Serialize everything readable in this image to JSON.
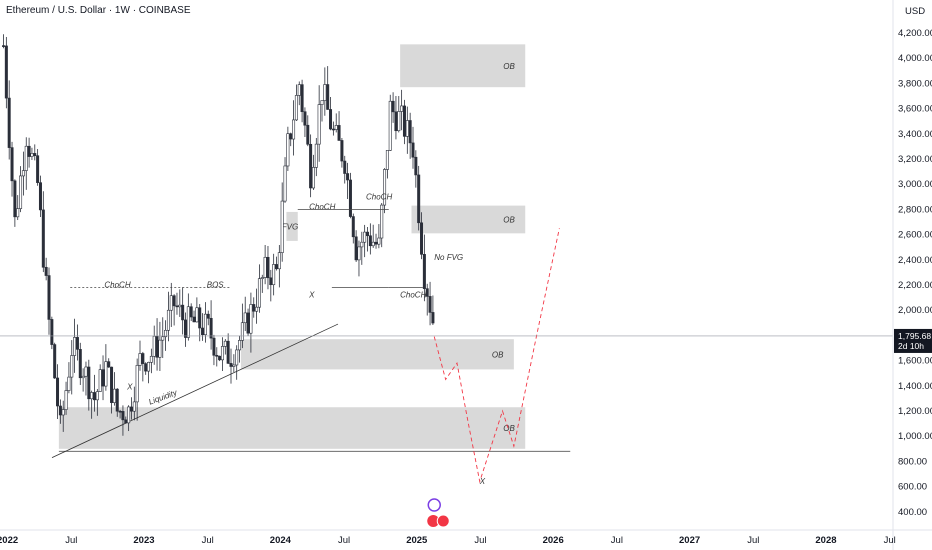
{
  "header": {
    "symbol_line": "Ethereum / U.S. Dollar · 1W · COINBASE",
    "currency": "USD"
  },
  "colors": {
    "up": "#089981",
    "down": "#f23645",
    "candle": "#2a2e39",
    "zone": "#d9d9d9",
    "projection": "#f23645",
    "price_line": "#9598a1"
  },
  "chart_data": {
    "type": "candlestick",
    "x_axis_labels": [
      "2022",
      "Jul",
      "2023",
      "Jul",
      "2024",
      "Jul",
      "2025",
      "Jul",
      "2026",
      "Jul",
      "2027",
      "Jul",
      "2028",
      "Jul"
    ],
    "y_axis_labels": [
      "4,200.00",
      "4,000.00",
      "3,800.00",
      "3,600.00",
      "3,400.00",
      "3,200.00",
      "3,000.00",
      "2,800.00",
      "2,600.00",
      "2,400.00",
      "2,200.00",
      "2,000.00",
      "1,800.00",
      "1,600.00",
      "1,400.00",
      "1,200.00",
      "1,000.00",
      "800.00",
      "600.00",
      "400.00"
    ],
    "last_price": "1,795.68",
    "countdown": "2d 10h",
    "price_path": [
      {
        "date": "2022-01",
        "price": 4100
      },
      {
        "date": "2022-02",
        "price": 2700
      },
      {
        "date": "2022-03",
        "price": 3400
      },
      {
        "date": "2022-04",
        "price": 3000
      },
      {
        "date": "2022-05",
        "price": 1900
      },
      {
        "date": "2022-06",
        "price": 1050
      },
      {
        "date": "2022-07",
        "price": 1700
      },
      {
        "date": "2022-08",
        "price": 1550
      },
      {
        "date": "2022-09",
        "price": 1300
      },
      {
        "date": "2022-10",
        "price": 1550
      },
      {
        "date": "2022-11",
        "price": 1200
      },
      {
        "date": "2022-12",
        "price": 1200
      },
      {
        "date": "2023-01",
        "price": 1600
      },
      {
        "date": "2023-02",
        "price": 1650
      },
      {
        "date": "2023-03",
        "price": 1800
      },
      {
        "date": "2023-04",
        "price": 2050
      },
      {
        "date": "2023-05",
        "price": 1900
      },
      {
        "date": "2023-06",
        "price": 1900
      },
      {
        "date": "2023-07",
        "price": 1850
      },
      {
        "date": "2023-08",
        "price": 1650
      },
      {
        "date": "2023-09",
        "price": 1650
      },
      {
        "date": "2023-10",
        "price": 1800
      },
      {
        "date": "2023-11",
        "price": 2050
      },
      {
        "date": "2023-12",
        "price": 2300
      },
      {
        "date": "2024-01",
        "price": 2300
      },
      {
        "date": "2024-02",
        "price": 3300
      },
      {
        "date": "2024-03",
        "price": 3800
      },
      {
        "date": "2024-04",
        "price": 3100
      },
      {
        "date": "2024-05",
        "price": 3750
      },
      {
        "date": "2024-06",
        "price": 3400
      },
      {
        "date": "2024-07",
        "price": 3200
      },
      {
        "date": "2024-08",
        "price": 2500
      },
      {
        "date": "2024-09",
        "price": 2600
      },
      {
        "date": "2024-10",
        "price": 2500
      },
      {
        "date": "2024-11",
        "price": 3600
      },
      {
        "date": "2024-12",
        "price": 3500
      },
      {
        "date": "2025-01",
        "price": 3300
      },
      {
        "date": "2025-02",
        "price": 2300
      },
      {
        "date": "2025-03",
        "price": 1800
      }
    ],
    "zones": [
      {
        "label": "OB",
        "date_from": "2024-12",
        "date_to": "2025-11",
        "price_low": 3770,
        "price_high": 4110
      },
      {
        "label": "OB",
        "date_from": "2025-01",
        "date_to": "2025-11",
        "price_low": 2610,
        "price_high": 2830
      },
      {
        "label": "FVG",
        "date_from": "2024-02",
        "date_to": "2024-03",
        "price_low": 2550,
        "price_high": 2780
      },
      {
        "label": "OB",
        "date_from": "2023-10",
        "date_to": "2025-10",
        "price_low": 1530,
        "price_high": 1770
      },
      {
        "label": "OB",
        "date_from": "2022-06",
        "date_to": "2025-11",
        "price_low": 900,
        "price_high": 1230
      }
    ],
    "annotations": [
      {
        "text": "ChoCH",
        "date": "2022-10",
        "price": 2180
      },
      {
        "text": "BOS",
        "date": "2023-07",
        "price": 2180
      },
      {
        "text": "X",
        "date": "2022-12",
        "price": 1370
      },
      {
        "text": "Liquidity",
        "date": "2023-02",
        "price": 1250
      },
      {
        "text": "ChoCH",
        "date": "2024-04",
        "price": 2800
      },
      {
        "text": "X",
        "date": "2024-04",
        "price": 2100
      },
      {
        "text": "ChoCH",
        "date": "2024-09",
        "price": 2880
      },
      {
        "text": "ChoCH",
        "date": "2024-12",
        "price": 2100
      },
      {
        "text": "No FVG",
        "date": "2025-03",
        "price": 2400
      },
      {
        "text": "X",
        "date": "2025-07",
        "price": 620
      }
    ],
    "projection_path": [
      {
        "date": "2025-03",
        "price": 1790
      },
      {
        "date": "2025-04",
        "price": 1450
      },
      {
        "date": "2025-05",
        "price": 1580
      },
      {
        "date": "2025-06",
        "price": 1100
      },
      {
        "date": "2025-07",
        "price": 640
      },
      {
        "date": "2025-09",
        "price": 1200
      },
      {
        "date": "2025-10",
        "price": 920
      },
      {
        "date": "2025-12",
        "price": 1800
      },
      {
        "date": "2026-02",
        "price": 2650
      }
    ]
  }
}
